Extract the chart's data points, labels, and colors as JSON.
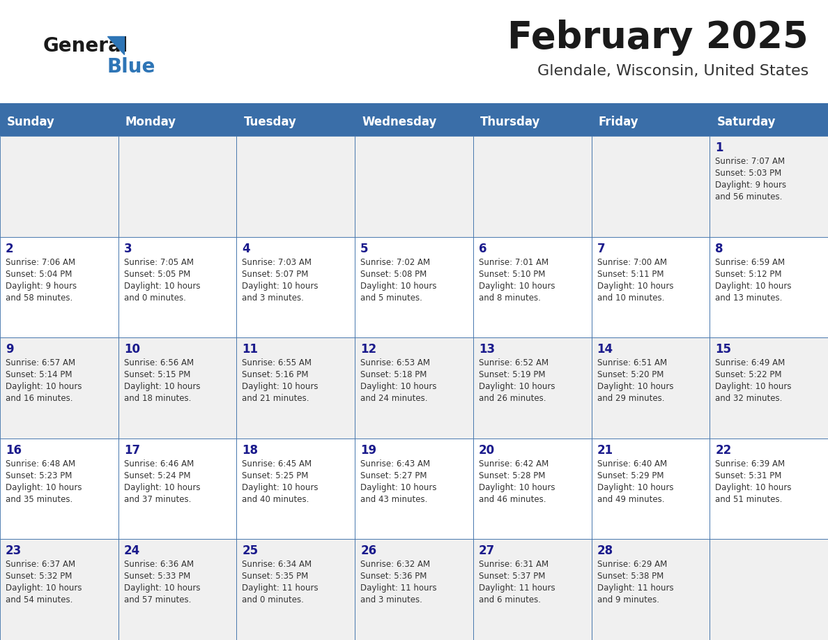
{
  "title": "February 2025",
  "subtitle": "Glendale, Wisconsin, United States",
  "days_of_week": [
    "Sunday",
    "Monday",
    "Tuesday",
    "Wednesday",
    "Thursday",
    "Friday",
    "Saturday"
  ],
  "header_bg": "#3a6ea8",
  "header_text": "#ffffff",
  "cell_bg_odd": "#f0f0f0",
  "cell_bg_even": "#ffffff",
  "cell_border": "#3a6ea8",
  "day_number_color": "#1a1a8c",
  "info_color": "#333333",
  "title_color": "#1a1a1a",
  "subtitle_color": "#333333",
  "logo_general_color": "#1a1a1a",
  "logo_blue_color": "#2e75b6",
  "weeks": [
    [
      {
        "day": null,
        "info": ""
      },
      {
        "day": null,
        "info": ""
      },
      {
        "day": null,
        "info": ""
      },
      {
        "day": null,
        "info": ""
      },
      {
        "day": null,
        "info": ""
      },
      {
        "day": null,
        "info": ""
      },
      {
        "day": 1,
        "info": "Sunrise: 7:07 AM\nSunset: 5:03 PM\nDaylight: 9 hours\nand 56 minutes."
      }
    ],
    [
      {
        "day": 2,
        "info": "Sunrise: 7:06 AM\nSunset: 5:04 PM\nDaylight: 9 hours\nand 58 minutes."
      },
      {
        "day": 3,
        "info": "Sunrise: 7:05 AM\nSunset: 5:05 PM\nDaylight: 10 hours\nand 0 minutes."
      },
      {
        "day": 4,
        "info": "Sunrise: 7:03 AM\nSunset: 5:07 PM\nDaylight: 10 hours\nand 3 minutes."
      },
      {
        "day": 5,
        "info": "Sunrise: 7:02 AM\nSunset: 5:08 PM\nDaylight: 10 hours\nand 5 minutes."
      },
      {
        "day": 6,
        "info": "Sunrise: 7:01 AM\nSunset: 5:10 PM\nDaylight: 10 hours\nand 8 minutes."
      },
      {
        "day": 7,
        "info": "Sunrise: 7:00 AM\nSunset: 5:11 PM\nDaylight: 10 hours\nand 10 minutes."
      },
      {
        "day": 8,
        "info": "Sunrise: 6:59 AM\nSunset: 5:12 PM\nDaylight: 10 hours\nand 13 minutes."
      }
    ],
    [
      {
        "day": 9,
        "info": "Sunrise: 6:57 AM\nSunset: 5:14 PM\nDaylight: 10 hours\nand 16 minutes."
      },
      {
        "day": 10,
        "info": "Sunrise: 6:56 AM\nSunset: 5:15 PM\nDaylight: 10 hours\nand 18 minutes."
      },
      {
        "day": 11,
        "info": "Sunrise: 6:55 AM\nSunset: 5:16 PM\nDaylight: 10 hours\nand 21 minutes."
      },
      {
        "day": 12,
        "info": "Sunrise: 6:53 AM\nSunset: 5:18 PM\nDaylight: 10 hours\nand 24 minutes."
      },
      {
        "day": 13,
        "info": "Sunrise: 6:52 AM\nSunset: 5:19 PM\nDaylight: 10 hours\nand 26 minutes."
      },
      {
        "day": 14,
        "info": "Sunrise: 6:51 AM\nSunset: 5:20 PM\nDaylight: 10 hours\nand 29 minutes."
      },
      {
        "day": 15,
        "info": "Sunrise: 6:49 AM\nSunset: 5:22 PM\nDaylight: 10 hours\nand 32 minutes."
      }
    ],
    [
      {
        "day": 16,
        "info": "Sunrise: 6:48 AM\nSunset: 5:23 PM\nDaylight: 10 hours\nand 35 minutes."
      },
      {
        "day": 17,
        "info": "Sunrise: 6:46 AM\nSunset: 5:24 PM\nDaylight: 10 hours\nand 37 minutes."
      },
      {
        "day": 18,
        "info": "Sunrise: 6:45 AM\nSunset: 5:25 PM\nDaylight: 10 hours\nand 40 minutes."
      },
      {
        "day": 19,
        "info": "Sunrise: 6:43 AM\nSunset: 5:27 PM\nDaylight: 10 hours\nand 43 minutes."
      },
      {
        "day": 20,
        "info": "Sunrise: 6:42 AM\nSunset: 5:28 PM\nDaylight: 10 hours\nand 46 minutes."
      },
      {
        "day": 21,
        "info": "Sunrise: 6:40 AM\nSunset: 5:29 PM\nDaylight: 10 hours\nand 49 minutes."
      },
      {
        "day": 22,
        "info": "Sunrise: 6:39 AM\nSunset: 5:31 PM\nDaylight: 10 hours\nand 51 minutes."
      }
    ],
    [
      {
        "day": 23,
        "info": "Sunrise: 6:37 AM\nSunset: 5:32 PM\nDaylight: 10 hours\nand 54 minutes."
      },
      {
        "day": 24,
        "info": "Sunrise: 6:36 AM\nSunset: 5:33 PM\nDaylight: 10 hours\nand 57 minutes."
      },
      {
        "day": 25,
        "info": "Sunrise: 6:34 AM\nSunset: 5:35 PM\nDaylight: 11 hours\nand 0 minutes."
      },
      {
        "day": 26,
        "info": "Sunrise: 6:32 AM\nSunset: 5:36 PM\nDaylight: 11 hours\nand 3 minutes."
      },
      {
        "day": 27,
        "info": "Sunrise: 6:31 AM\nSunset: 5:37 PM\nDaylight: 11 hours\nand 6 minutes."
      },
      {
        "day": 28,
        "info": "Sunrise: 6:29 AM\nSunset: 5:38 PM\nDaylight: 11 hours\nand 9 minutes."
      },
      {
        "day": null,
        "info": ""
      }
    ]
  ]
}
